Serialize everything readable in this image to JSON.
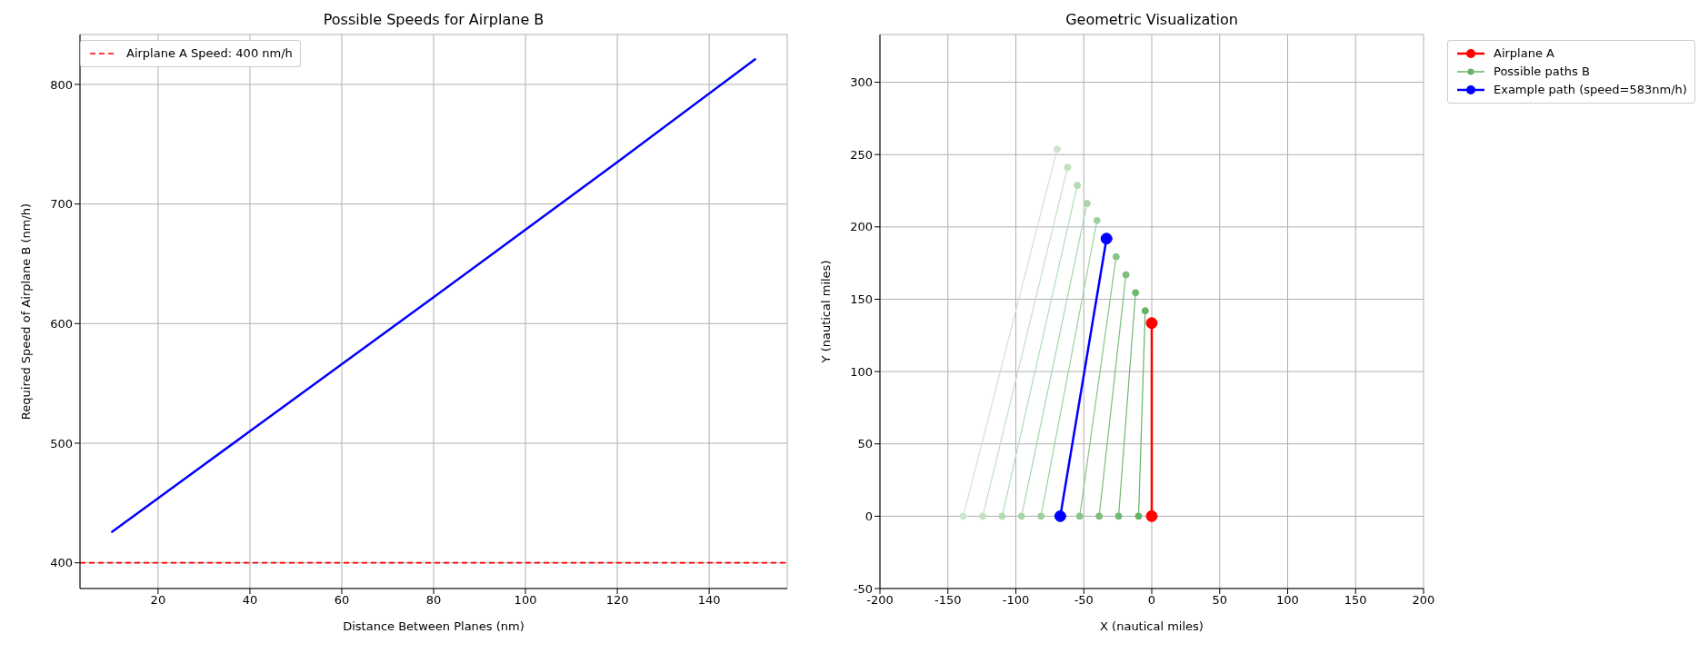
{
  "chart_data": [
    {
      "type": "line",
      "title": "Possible Speeds for Airplane B",
      "xlabel": "Distance Between Planes (nm)",
      "ylabel": "Required Speed of Airplane B (nm/h)",
      "x": [
        10,
        40,
        80,
        120,
        150
      ],
      "values": [
        426,
        510,
        622,
        735,
        821
      ],
      "color": "#0000ff",
      "marker": "none",
      "xlim": [
        3,
        157
      ],
      "ylim": [
        378.5,
        841.7
      ],
      "xticks": [
        20,
        40,
        60,
        80,
        100,
        120,
        140
      ],
      "yticks": [
        400,
        500,
        600,
        700,
        800
      ],
      "ref_lines": [
        {
          "axis": "y",
          "value": 400,
          "label": "Airplane A Speed: 400 nm/h",
          "color": "#ff0000",
          "line_style": "dashed"
        }
      ],
      "grid": true,
      "legend": "top left"
    },
    {
      "type": "line",
      "title": "Geometric Visualization",
      "xlabel": "X (nautical miles)",
      "ylabel": "Y (nautical miles)",
      "marker": "circle",
      "series": [
        {
          "name": "Airplane A",
          "color": "#ff0000",
          "x": [
            0,
            0
          ],
          "values": [
            0,
            133.5
          ]
        },
        {
          "name": "Possible paths B",
          "color": "#66b366",
          "x": [
            -9.7,
            -4.8
          ],
          "values": [
            0,
            142.0
          ]
        },
        {
          "color": "#71b871",
          "x": [
            -24.4,
            -11.9
          ],
          "values": [
            0,
            154.5
          ]
        },
        {
          "color": "#7dbe7d",
          "x": [
            -38.7,
            -19.0
          ],
          "values": [
            0,
            166.9
          ]
        },
        {
          "color": "#88c488",
          "x": [
            -53.0,
            -26.2
          ],
          "values": [
            0,
            179.4
          ]
        },
        {
          "color": "#9fd09f",
          "x": [
            -81.5,
            -40.3
          ],
          "values": [
            0,
            204.4
          ]
        },
        {
          "color": "#aad5aa",
          "x": [
            -95.8,
            -47.6
          ],
          "values": [
            0,
            216.2
          ]
        },
        {
          "color": "#b5dbb5",
          "x": [
            -110.1,
            -54.8
          ],
          "values": [
            0,
            228.7
          ]
        },
        {
          "color": "#c1e1c1",
          "x": [
            -124.4,
            -61.9
          ],
          "values": [
            0,
            241.2
          ]
        },
        {
          "color": "#cce6cc",
          "x": [
            -138.7,
            -69.6
          ],
          "values": [
            0,
            253.7
          ]
        },
        {
          "name": "Example path (speed=583nm/h)",
          "color": "#0000ff",
          "x": [
            -67.3,
            -33.3
          ],
          "values": [
            0,
            191.9
          ]
        }
      ],
      "xlim": [
        -200,
        200
      ],
      "ylim": [
        -50,
        333
      ],
      "xticks": [
        -200,
        -150,
        -100,
        -50,
        0,
        50,
        100,
        150,
        200
      ],
      "yticks": [
        -50,
        0,
        50,
        100,
        150,
        200,
        250,
        300
      ],
      "grid": true,
      "legend": "top right"
    }
  ]
}
